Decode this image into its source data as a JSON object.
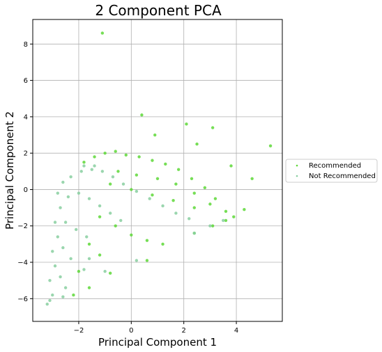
{
  "chart_data": {
    "type": "scatter",
    "title": "2 Component PCA",
    "xlabel": "Principal Component 1",
    "ylabel": "Principal Component 2",
    "xlim": [
      -3.75,
      5.75
    ],
    "ylim": [
      -7.25,
      9.35
    ],
    "xticks": [
      -2,
      0,
      2,
      4
    ],
    "yticks": [
      -6,
      -4,
      -2,
      0,
      2,
      4,
      6,
      8
    ],
    "xtick_labels": [
      "−2",
      "0",
      "2",
      "4"
    ],
    "ytick_labels": [
      "−6",
      "−4",
      "−2",
      "0",
      "2",
      "4",
      "6",
      "8"
    ],
    "grid": true,
    "legend_position": "right",
    "series": [
      {
        "name": "Recommended",
        "color": "#5ed838",
        "points": [
          [
            -1.8,
            1.5
          ],
          [
            -1.4,
            1.8
          ],
          [
            -1.0,
            2.0
          ],
          [
            -0.6,
            2.1
          ],
          [
            -0.2,
            1.9
          ],
          [
            0.3,
            1.8
          ],
          [
            0.8,
            1.6
          ],
          [
            1.3,
            1.4
          ],
          [
            1.8,
            1.1
          ],
          [
            2.3,
            0.6
          ],
          [
            2.8,
            0.1
          ],
          [
            3.2,
            -0.5
          ],
          [
            3.6,
            -1.2
          ],
          [
            3.9,
            -1.5
          ],
          [
            -0.5,
            1.0
          ],
          [
            0.2,
            0.8
          ],
          [
            1.0,
            0.6
          ],
          [
            1.7,
            0.3
          ],
          [
            2.4,
            -0.2
          ],
          [
            3.0,
            -0.8
          ],
          [
            -0.8,
            0.3
          ],
          [
            0.0,
            0.0
          ],
          [
            0.8,
            -0.3
          ],
          [
            1.6,
            -0.6
          ],
          [
            2.4,
            -1.0
          ],
          [
            -1.2,
            -1.5
          ],
          [
            -0.6,
            -2.0
          ],
          [
            0.0,
            -2.5
          ],
          [
            0.6,
            -2.8
          ],
          [
            1.2,
            -3.0
          ],
          [
            -1.6,
            -3.0
          ],
          [
            -1.2,
            -3.6
          ],
          [
            -2.0,
            -4.5
          ],
          [
            -1.6,
            -5.4
          ],
          [
            -2.2,
            -5.8
          ],
          [
            3.1,
            -2.0
          ],
          [
            3.6,
            -1.7
          ],
          [
            2.4,
            -2.4
          ],
          [
            -0.8,
            -4.6
          ],
          [
            0.6,
            -3.9
          ],
          [
            -1.1,
            8.6
          ],
          [
            0.4,
            4.1
          ],
          [
            2.1,
            3.6
          ],
          [
            3.1,
            3.4
          ],
          [
            5.3,
            2.4
          ],
          [
            4.6,
            0.6
          ],
          [
            4.3,
            -1.1
          ],
          [
            2.5,
            2.5
          ],
          [
            3.8,
            1.3
          ],
          [
            0.9,
            3.0
          ]
        ]
      },
      {
        "name": "Not Recommended",
        "color": "#88cfa0",
        "points": [
          [
            -3.2,
            -6.3
          ],
          [
            -3.0,
            -5.8
          ],
          [
            -3.1,
            -5.0
          ],
          [
            -2.9,
            -4.2
          ],
          [
            -3.0,
            -3.4
          ],
          [
            -2.8,
            -2.6
          ],
          [
            -2.9,
            -1.8
          ],
          [
            -2.7,
            -1.0
          ],
          [
            -2.8,
            -0.2
          ],
          [
            -2.6,
            0.4
          ],
          [
            -2.3,
            0.7
          ],
          [
            -1.9,
            1.0
          ],
          [
            -1.5,
            1.1
          ],
          [
            -1.1,
            1.0
          ],
          [
            -0.7,
            0.7
          ],
          [
            -0.3,
            0.3
          ],
          [
            0.2,
            -0.1
          ],
          [
            0.7,
            -0.5
          ],
          [
            1.2,
            -0.9
          ],
          [
            1.7,
            -1.3
          ],
          [
            2.2,
            -1.6
          ],
          [
            -2.4,
            -0.4
          ],
          [
            -2.0,
            -0.2
          ],
          [
            -1.6,
            -0.5
          ],
          [
            -1.2,
            -0.9
          ],
          [
            -0.8,
            -1.3
          ],
          [
            -0.4,
            -1.7
          ],
          [
            -2.5,
            -1.8
          ],
          [
            -2.1,
            -2.2
          ],
          [
            -1.7,
            -2.6
          ],
          [
            -2.6,
            -3.2
          ],
          [
            -2.3,
            -3.8
          ],
          [
            -2.7,
            -4.8
          ],
          [
            -2.5,
            -5.4
          ],
          [
            -3.1,
            -6.1
          ],
          [
            -2.6,
            -5.9
          ],
          [
            -1.8,
            1.3
          ],
          [
            -1.4,
            1.3
          ],
          [
            3.0,
            -2.0
          ],
          [
            3.5,
            -1.7
          ],
          [
            2.4,
            -2.4
          ],
          [
            -1.0,
            -4.5
          ],
          [
            0.2,
            -3.9
          ],
          [
            -1.6,
            -3.8
          ],
          [
            -1.8,
            -4.4
          ]
        ]
      }
    ]
  }
}
